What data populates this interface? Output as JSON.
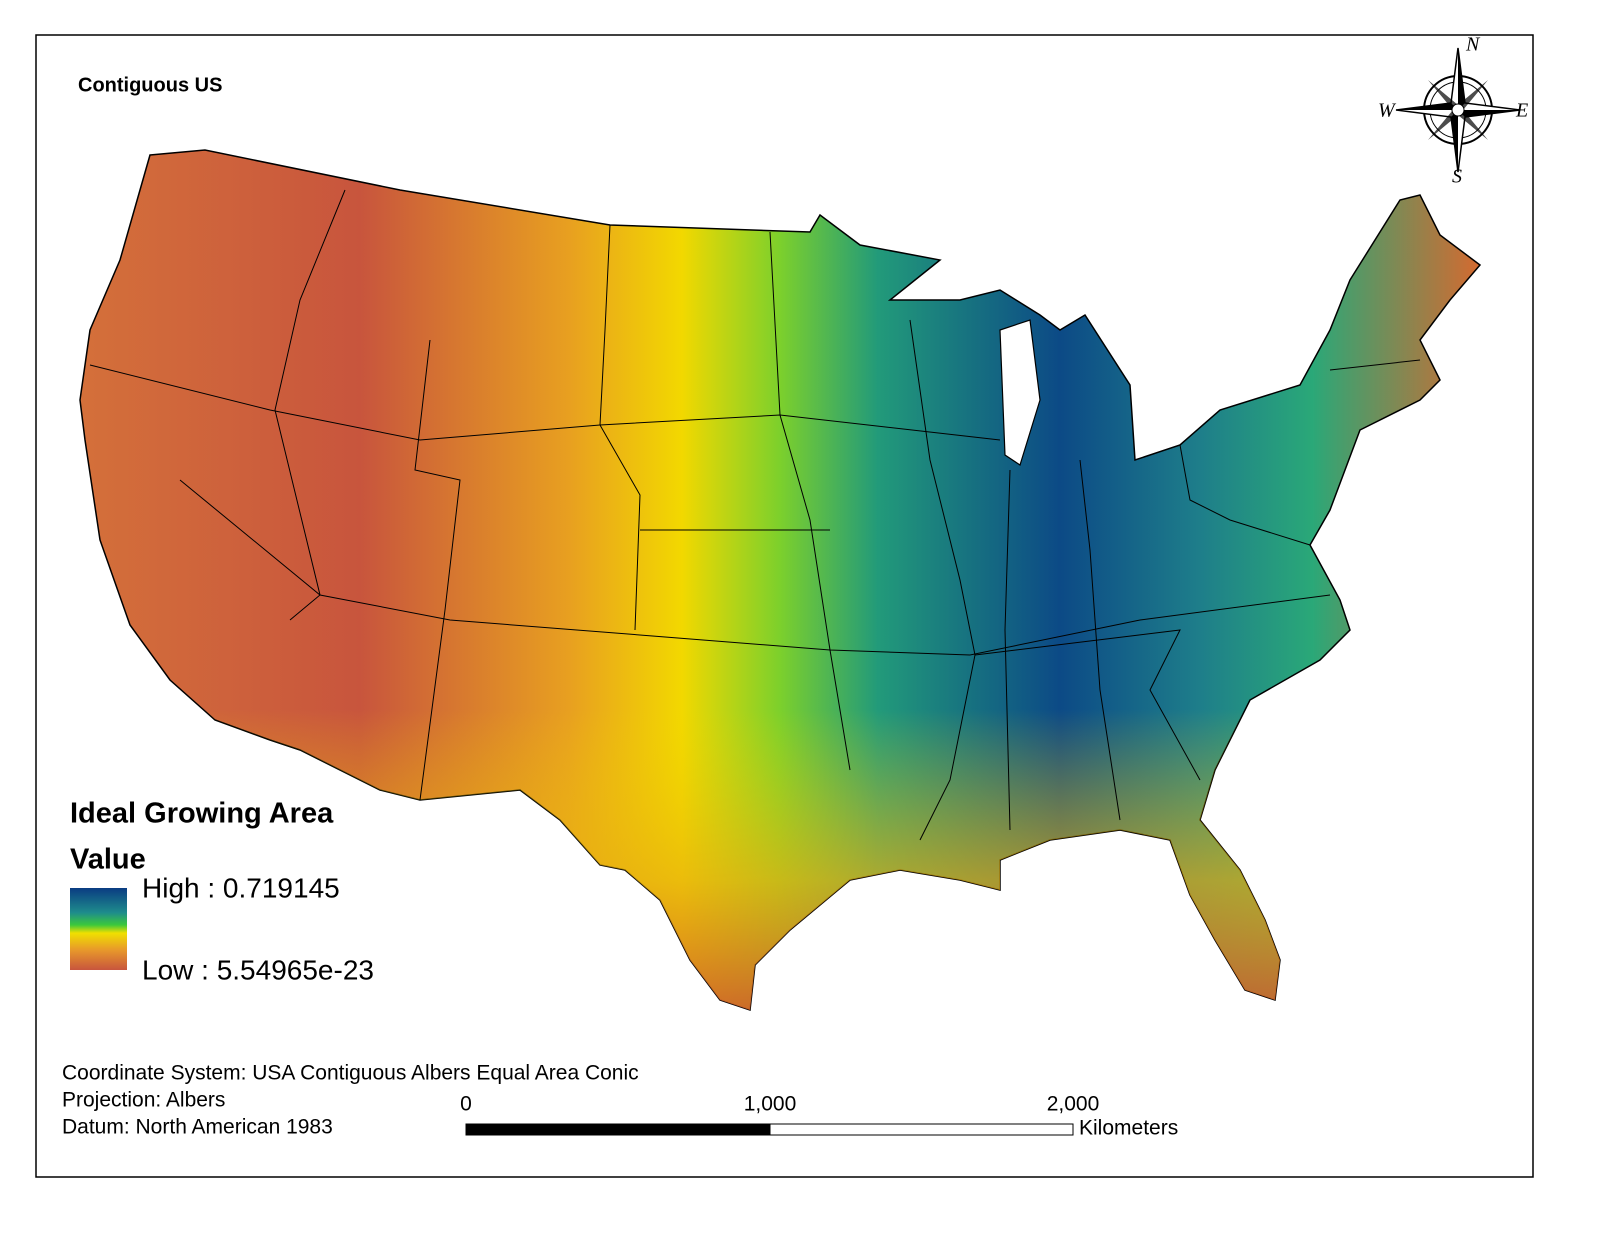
{
  "title": "Contiguous US",
  "compass": {
    "north": "N",
    "east": "E",
    "south": "S",
    "west": "W"
  },
  "legend": {
    "title": "Ideal Growing Area",
    "subtitle": "Value",
    "high": "High : 0.719145",
    "low": "Low : 5.54965e-23"
  },
  "metadata": [
    "Coordinate System: USA Contiguous Albers Equal Area Conic",
    "Projection: Albers",
    "Datum: North American 1983"
  ],
  "scale_bar": {
    "labels": [
      "0",
      "1,000",
      "2,000"
    ],
    "unit": "Kilometers"
  }
}
